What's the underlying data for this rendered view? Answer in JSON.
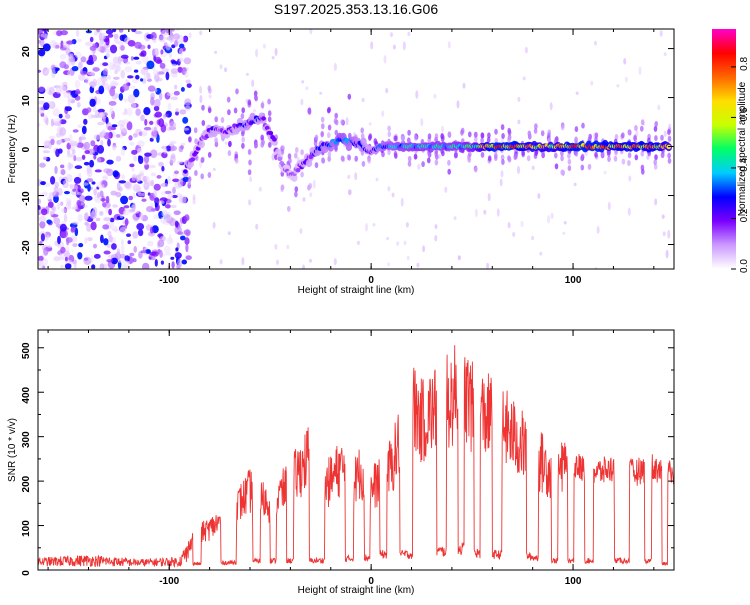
{
  "figure": {
    "title": "S197.2025.353.13.16.G06",
    "colors": {
      "snr_line": "#ee3333",
      "axis": "#000000",
      "background": "#ffffff"
    }
  },
  "chart_data": [
    {
      "type": "heatmap",
      "name": "spectrogram",
      "title": "S197.2025.353.13.16.G06",
      "xlabel": "Height of straight line (km)",
      "ylabel": "Frequency (Hz)",
      "xlim": [
        -165,
        150
      ],
      "ylim": [
        -25,
        24
      ],
      "xticks": [
        -100,
        0,
        100
      ],
      "yticks": [
        -20,
        -10,
        0,
        10,
        20
      ],
      "colorbar": {
        "label": "Normalized spectral amplitude",
        "range": [
          0,
          0.95
        ],
        "ticks": [
          0.0,
          0.2,
          0.4,
          0.6,
          0.8
        ],
        "tick_labels": [
          "0.0",
          "0.2",
          "0.4",
          "0.6",
          "0.8"
        ],
        "colormap": [
          "#ffffff",
          "#cc99ff",
          "#7a00ff",
          "#0000ff",
          "#00ccff",
          "#00ff66",
          "#c8ff00",
          "#ffdd00",
          "#ff6600",
          "#ff0000",
          "#ff00cc"
        ]
      },
      "ridge": {
        "x": [
          -92,
          -88,
          -83,
          -78,
          -72,
          -66,
          -60,
          -54,
          -48,
          -44,
          -40,
          -35,
          -30,
          -25,
          -20,
          -15,
          -10,
          -5,
          0,
          5,
          10,
          20,
          30,
          40,
          50,
          60,
          70,
          80,
          90,
          100,
          110,
          120,
          130,
          140,
          148
        ],
        "frequency": [
          -5,
          -2,
          2,
          3.5,
          3,
          4,
          5,
          6,
          1,
          -4,
          -6,
          -4,
          -2,
          0,
          0.5,
          1.5,
          1,
          0.5,
          -1,
          0,
          0,
          0,
          0,
          0,
          0,
          0,
          0,
          0,
          0,
          0,
          0,
          0,
          0,
          0,
          0
        ],
        "amplitude": [
          0.25,
          0.2,
          0.2,
          0.25,
          0.2,
          0.25,
          0.3,
          0.25,
          0.2,
          0.15,
          0.15,
          0.2,
          0.25,
          0.3,
          0.35,
          0.4,
          0.35,
          0.3,
          0.25,
          0.35,
          0.4,
          0.45,
          0.45,
          0.45,
          0.5,
          0.85,
          0.85,
          0.75,
          0.7,
          0.85,
          0.85,
          0.8,
          0.8,
          0.8,
          0.7
        ]
      },
      "noise_region": {
        "x_range": [
          -165,
          -90
        ],
        "typical_amplitude": 0.1
      }
    },
    {
      "type": "line",
      "name": "snr",
      "xlabel": "Height of straight line (km)",
      "ylabel": "SNR (10 * v/v)",
      "xlim": [
        -165,
        150
      ],
      "ylim": [
        0,
        540
      ],
      "xticks": [
        -100,
        0,
        100
      ],
      "yticks": [
        0,
        100,
        200,
        300,
        400,
        500
      ],
      "series": [
        {
          "name": "SNR",
          "color": "#ee3333",
          "envelope_x": [
            -165,
            -140,
            -115,
            -95,
            -88,
            -80,
            -70,
            -60,
            -50,
            -40,
            -30,
            -25,
            -20,
            -15,
            -10,
            -5,
            0,
            5,
            10,
            15,
            20,
            25,
            30,
            35,
            40,
            45,
            50,
            55,
            60,
            65,
            70,
            75,
            80,
            85,
            90,
            95,
            100,
            110,
            120,
            130,
            140,
            145,
            150
          ],
          "envelope_max": [
            28,
            35,
            25,
            30,
            95,
            120,
            160,
            230,
            190,
            250,
            340,
            230,
            260,
            300,
            240,
            290,
            230,
            270,
            300,
            390,
            480,
            430,
            460,
            470,
            500,
            535,
            470,
            450,
            440,
            420,
            390,
            360,
            330,
            310,
            280,
            290,
            270,
            250,
            260,
            250,
            265,
            250,
            245
          ],
          "envelope_min": [
            8,
            8,
            8,
            8,
            10,
            10,
            12,
            14,
            15,
            15,
            15,
            15,
            18,
            18,
            18,
            20,
            20,
            25,
            25,
            25,
            25,
            30,
            30,
            30,
            30,
            35,
            30,
            25,
            25,
            25,
            25,
            25,
            20,
            20,
            15,
            15,
            15,
            15,
            15,
            15,
            15,
            10,
            10
          ]
        }
      ]
    }
  ]
}
